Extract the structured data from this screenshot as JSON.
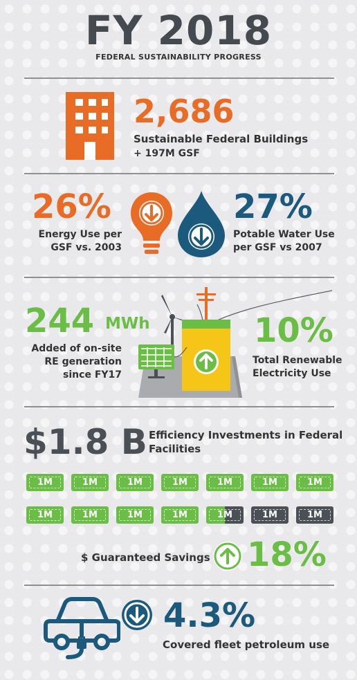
{
  "header": {
    "title": "FY 2018",
    "subtitle": "FEDERAL SUSTAINABILITY PROGRESS"
  },
  "buildings": {
    "value": "2,686",
    "label": "Sustainable Federal Buildings",
    "sublabel": "+ 197M GSF",
    "icon": "building-icon",
    "color": "#e86c26"
  },
  "energy": {
    "value": "26%",
    "label_line1": "Energy Use per",
    "label_line2": "GSF vs. 2003",
    "icon": "lightbulb-down-icon",
    "color": "#e86c26"
  },
  "water": {
    "value": "27%",
    "label_line1": "Potable Water Use",
    "label_line2": "per GSF vs 2007",
    "icon": "water-drop-down-icon",
    "color": "#1b5a7c"
  },
  "renewable_generation": {
    "value": "244",
    "unit": "MWh",
    "label_line1": "Added of on-site",
    "label_line2": "RE generation",
    "label_line3": "since FY17",
    "icon": "wind-solar-battery-icon",
    "color": "#6abd45"
  },
  "renewable_electricity": {
    "value": "10%",
    "label_line1": "Total Renewable",
    "label_line2": "Electricity Use"
  },
  "investments": {
    "value": "$1.8 B",
    "label_line1": "Efficiency Investments in Federal",
    "label_line2": "Facilities",
    "bill_label": "1M",
    "bills_total": 14,
    "bills_filled": 11.5
  },
  "savings": {
    "label": "$ Guaranteed Savings",
    "value": "18%",
    "icon": "arrow-up-circle-icon"
  },
  "fleet": {
    "value": "4.3%",
    "label": "Covered fleet petroleum use",
    "icon": "electric-car-icon",
    "arrow_icon": "arrow-down-circle-icon"
  },
  "colors": {
    "orange": "#e86c26",
    "blue": "#1b5a7c",
    "green": "#6abd45",
    "dark": "#4a5056",
    "yellow": "#f5c518"
  }
}
